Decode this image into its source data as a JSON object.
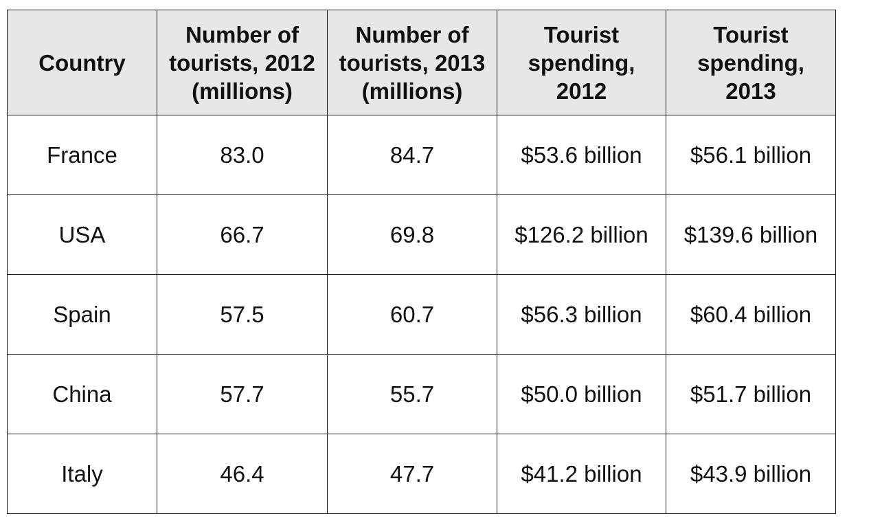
{
  "chart_data": {
    "type": "table",
    "title": "",
    "columns": [
      [
        "Country"
      ],
      [
        "Number of",
        "tourists, 2012",
        "(millions)"
      ],
      [
        "Number of",
        "tourists, 2013",
        "(millions)"
      ],
      [
        "Tourist",
        "spending,",
        "2012"
      ],
      [
        "Tourist",
        "spending,",
        "2013"
      ]
    ],
    "rows": [
      {
        "country": "France",
        "tourists_2012": "83.0",
        "tourists_2013": "84.7",
        "spending_2012": "$53.6 billion",
        "spending_2013": "$56.1 billion"
      },
      {
        "country": "USA",
        "tourists_2012": "66.7",
        "tourists_2013": "69.8",
        "spending_2012": "$126.2 billion",
        "spending_2013": "$139.6 billion"
      },
      {
        "country": "Spain",
        "tourists_2012": "57.5",
        "tourists_2013": "60.7",
        "spending_2012": "$56.3 billion",
        "spending_2013": "$60.4 billion"
      },
      {
        "country": "China",
        "tourists_2012": "57.7",
        "tourists_2013": "55.7",
        "spending_2012": "$50.0 billion",
        "spending_2013": "$51.7 billion"
      },
      {
        "country": "Italy",
        "tourists_2012": "46.4",
        "tourists_2013": "47.7",
        "spending_2012": "$41.2 billion",
        "spending_2013": "$43.9 billion"
      }
    ],
    "colors": {
      "header_background": "#e6e7e9",
      "border": "#1a1a1a",
      "text": "#111111"
    }
  }
}
